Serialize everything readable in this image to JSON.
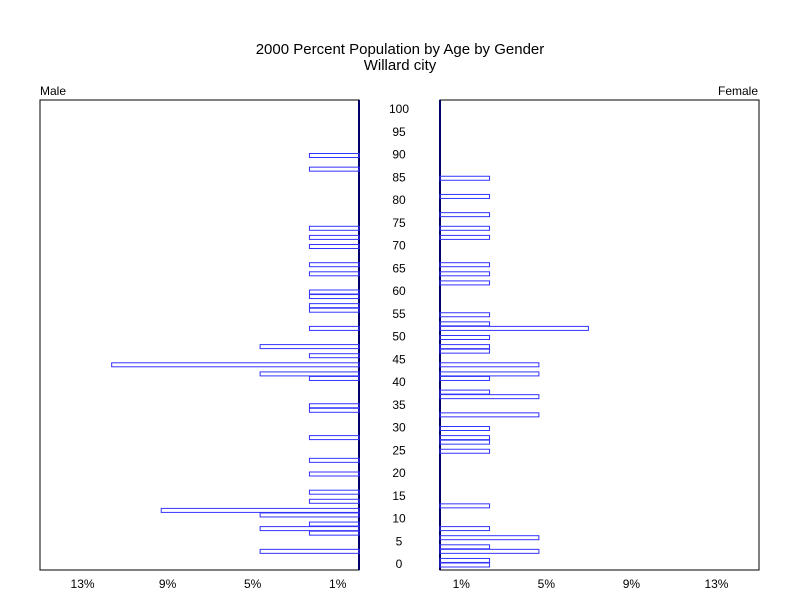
{
  "chart_data": {
    "type": "pyramid",
    "title": "2000 Percent Population by Age by Gender",
    "subtitle": "Willard city",
    "ylim": [
      0,
      100
    ],
    "yticks": [
      0,
      5,
      10,
      15,
      20,
      25,
      30,
      35,
      40,
      45,
      50,
      55,
      60,
      65,
      70,
      75,
      80,
      85,
      90,
      95,
      100
    ],
    "xlim": [
      0,
      15
    ],
    "male_xticks": [
      {
        "value": 13,
        "label": "13%"
      },
      {
        "value": 9,
        "label": "9%"
      },
      {
        "value": 5,
        "label": "5%"
      },
      {
        "value": 1,
        "label": "1%"
      }
    ],
    "female_xticks": [
      {
        "value": 1,
        "label": "1%"
      },
      {
        "value": 5,
        "label": "5%"
      },
      {
        "value": 9,
        "label": "9%"
      },
      {
        "value": 13,
        "label": "13%"
      }
    ],
    "series": [
      {
        "name": "Male",
        "color": "#3333ff",
        "ages": [
          90,
          87,
          74,
          72,
          70,
          66,
          64,
          60,
          59,
          57,
          56,
          52,
          48,
          46,
          44,
          42,
          41,
          35,
          34,
          28,
          23,
          20,
          16,
          14,
          12,
          11,
          9,
          8,
          7,
          3
        ],
        "values": [
          2.33,
          2.33,
          2.33,
          2.33,
          2.33,
          2.33,
          2.33,
          2.33,
          2.33,
          2.33,
          2.33,
          2.33,
          4.65,
          2.33,
          11.63,
          4.65,
          2.33,
          2.33,
          2.33,
          2.33,
          2.33,
          2.33,
          2.33,
          2.33,
          9.3,
          4.65,
          2.33,
          4.65,
          2.33,
          4.65
        ]
      },
      {
        "name": "Female",
        "color": "#3333ff",
        "ages": [
          85,
          81,
          77,
          74,
          72,
          66,
          64,
          62,
          55,
          53,
          52,
          50,
          48,
          47,
          44,
          42,
          41,
          38,
          37,
          33,
          30,
          28,
          27,
          25,
          13,
          8,
          6,
          4,
          3,
          1,
          0
        ],
        "values": [
          2.33,
          2.33,
          2.33,
          2.33,
          2.33,
          2.33,
          2.33,
          2.33,
          2.33,
          2.33,
          6.98,
          2.33,
          2.33,
          2.33,
          4.65,
          4.65,
          2.33,
          2.33,
          4.65,
          4.65,
          2.33,
          2.33,
          2.33,
          2.33,
          2.33,
          2.33,
          4.65,
          2.33,
          4.65,
          2.33,
          2.33
        ]
      }
    ]
  }
}
